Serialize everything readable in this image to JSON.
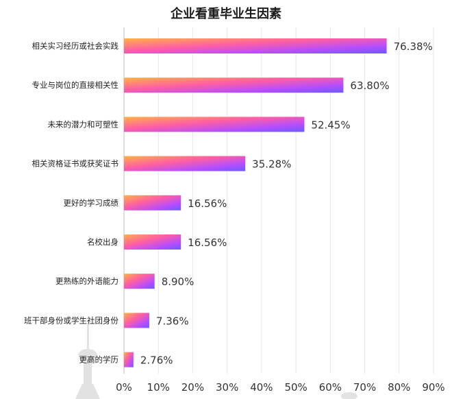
{
  "chart_data": {
    "type": "bar",
    "orientation": "horizontal",
    "title": "企业看重毕业生因素",
    "categories": [
      "相关实习经历或社会实践",
      "专业与岗位的直接相关性",
      "未来的潜力和可塑性",
      "相关资格证书或获奖证书",
      "更好的学习成绩",
      "名校出身",
      "更熟练的外语能力",
      "班干部身份或学生社团身份",
      "更高的学历"
    ],
    "values": [
      76.38,
      63.8,
      52.45,
      35.28,
      16.56,
      16.56,
      8.9,
      7.36,
      2.76
    ],
    "value_labels": [
      "76.38%",
      "63.80%",
      "52.45%",
      "35.28%",
      "16.56%",
      "16.56%",
      "8.90%",
      "7.36%",
      "2.76%"
    ],
    "xticks": [
      "0%",
      "10%",
      "20%",
      "30%",
      "40%",
      "50%",
      "60%",
      "70%",
      "80%",
      "90%"
    ],
    "xlim": [
      0,
      90
    ],
    "grid": true,
    "bar_gradient": [
      "#ffb347",
      "#ff5fa2",
      "#b44dff",
      "#6a5cff"
    ]
  }
}
